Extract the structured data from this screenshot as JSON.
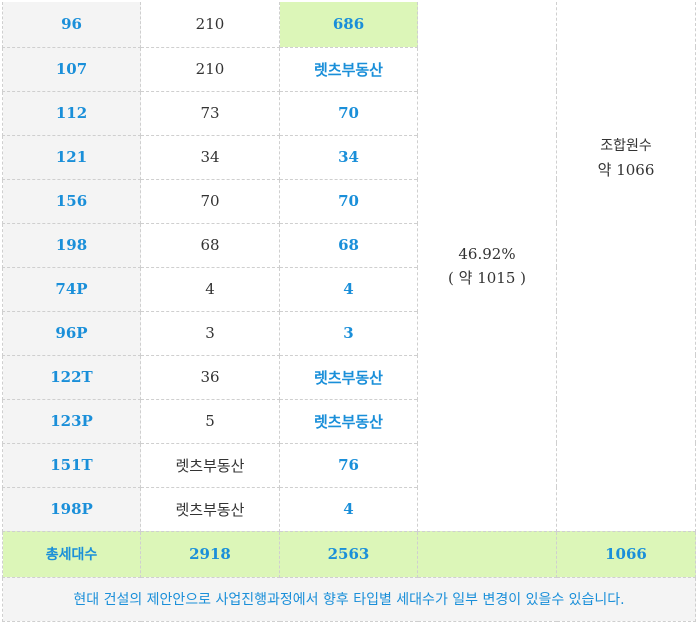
{
  "rows": [
    {
      "type": "96",
      "c2": "210",
      "c3": "686"
    },
    {
      "type": "107",
      "c2": "210",
      "c3": "렛츠부동산"
    },
    {
      "type": "112",
      "c2": "73",
      "c3": "70"
    },
    {
      "type": "121",
      "c2": "34",
      "c3": "34"
    },
    {
      "type": "156",
      "c2": "70",
      "c3": "70"
    },
    {
      "type": "198",
      "c2": "68",
      "c3": "68"
    },
    {
      "type": "74P",
      "c2": "4",
      "c3": "4"
    },
    {
      "type": "96P",
      "c2": "3",
      "c3": "3"
    },
    {
      "type": "122T",
      "c2": "36",
      "c3": "렛츠부동산"
    },
    {
      "type": "123P",
      "c2": "5",
      "c3": "렛츠부동산"
    },
    {
      "type": "151T",
      "c2": "렛츠부동산",
      "c3": "76"
    },
    {
      "type": "198P",
      "c2": "렛츠부동산",
      "c3": "4"
    }
  ],
  "merged_rate": {
    "line1": "46.92%",
    "line2": "( 약 1015 )"
  },
  "merged_members": {
    "line1": "조합원수",
    "line2": "약 1066"
  },
  "total": {
    "label": "총세대수",
    "c2": "2918",
    "c3": "2563",
    "c4": "",
    "c5": "1066"
  },
  "note": "현대 건설의 제안안으로 사업진행과정에서 향후 타입별 세대수가 일부 변경이 있을수 있습니다.",
  "colors": {
    "accent": "#1a8fd9",
    "highlight": "#dcf6b8",
    "row_bg": "#f4f4f4"
  }
}
